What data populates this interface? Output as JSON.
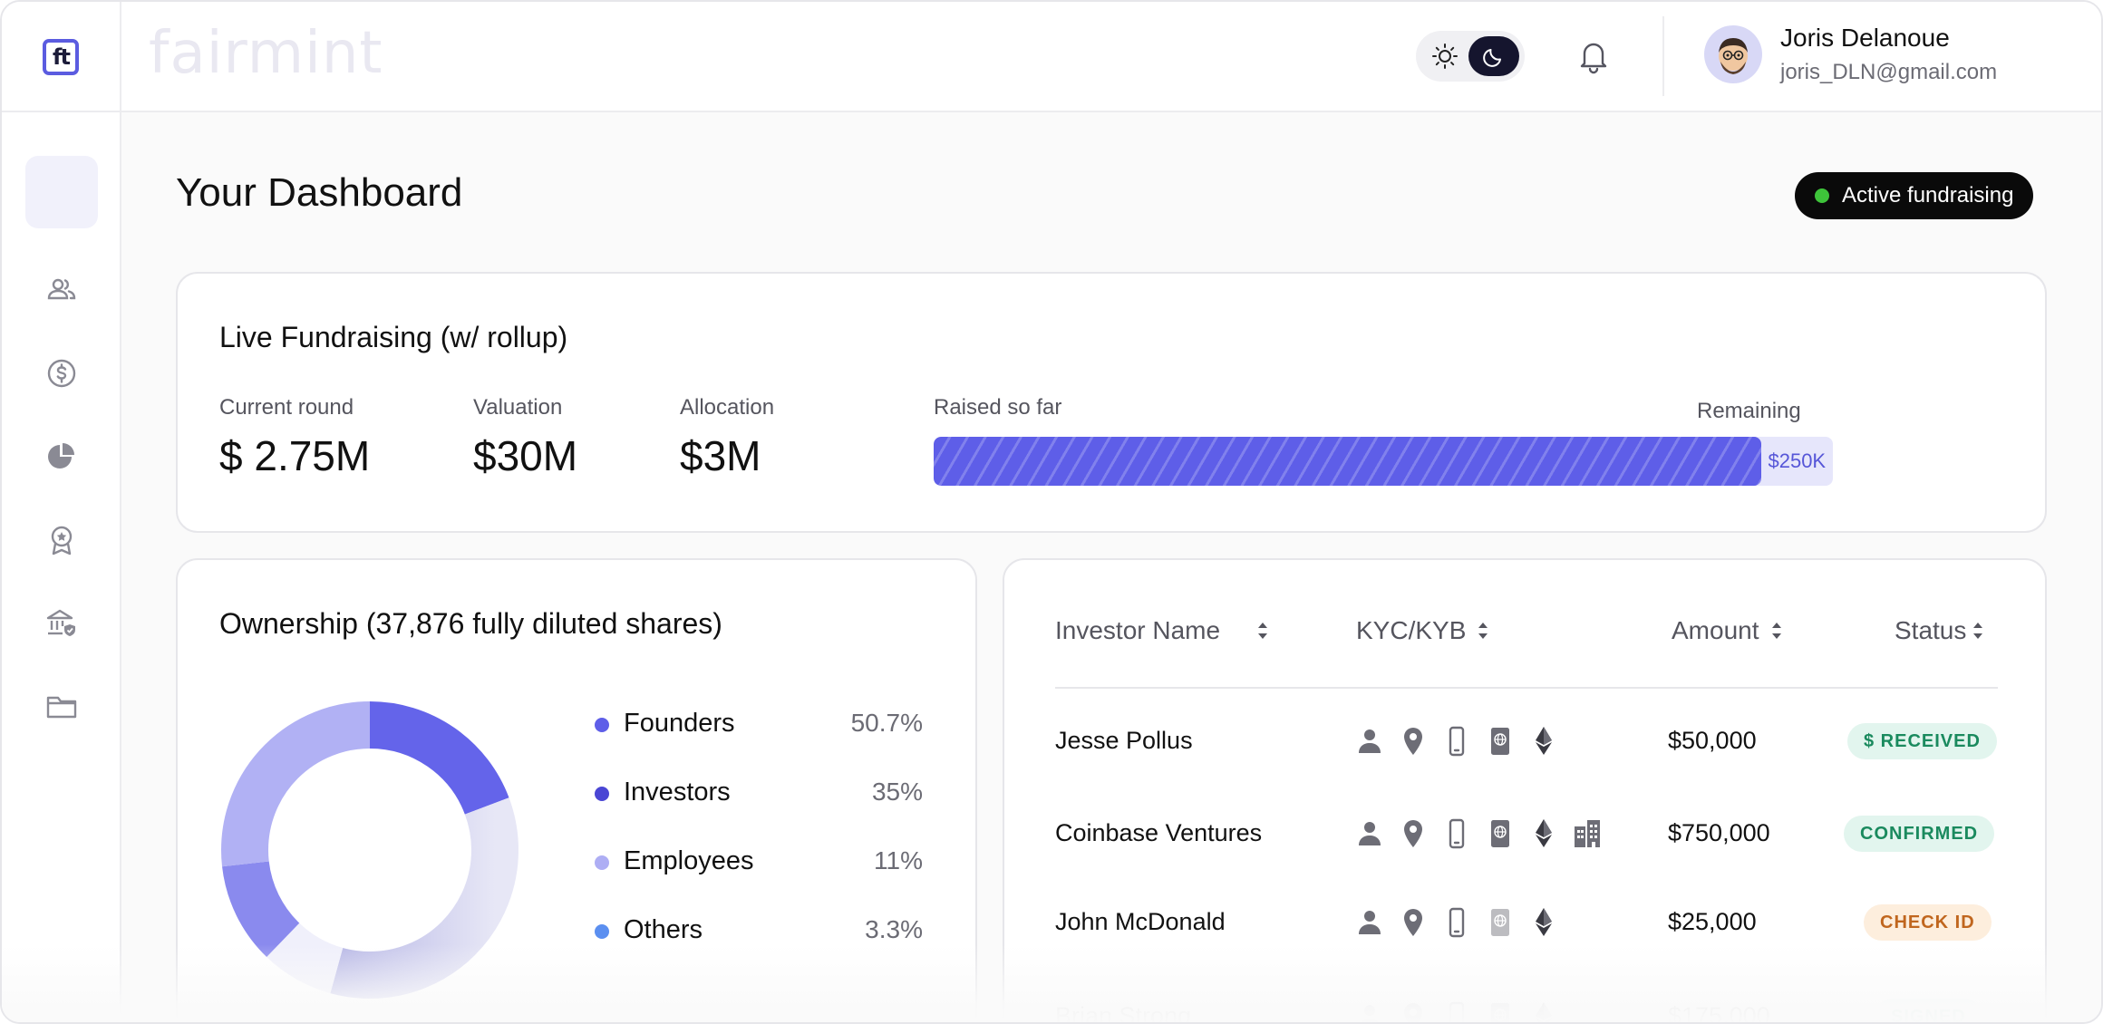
{
  "brand": {
    "logo_text": "ft",
    "wordmark": "fairmint"
  },
  "user": {
    "name": "Joris Delanoue",
    "email": "joris_DLN@gmail.com"
  },
  "page": {
    "title": "Your Dashboard",
    "status_badge": "Active fundraising"
  },
  "colors": {
    "accent": "#5e5ee8",
    "active_dot": "#3ec43a",
    "badge_bg": "#0a0a0a"
  },
  "sidebar": {
    "items": [
      {
        "name": "dashboard-icon"
      },
      {
        "name": "people-icon"
      },
      {
        "name": "dollar-icon"
      },
      {
        "name": "pie-chart-icon"
      },
      {
        "name": "award-icon"
      },
      {
        "name": "bank-shield-icon"
      },
      {
        "name": "folder-icon"
      }
    ]
  },
  "live": {
    "title": "Live Fundraising (w/ rollup)",
    "current_round_label": "Current round",
    "current_round_value": "$ 2.75M",
    "valuation_label": "Valuation",
    "valuation_value": "$30M",
    "allocation_label": "Allocation",
    "allocation_value": "$3M",
    "raised_label": "Raised so far",
    "remaining_label": "Remaining",
    "remaining_value": "$250K (8%)",
    "raised_percent": 92
  },
  "ownership": {
    "title": "Ownership (37,876 fully diluted shares)",
    "legend": [
      {
        "name": "Founders",
        "value": "50.7%",
        "color": "#5e5ee8"
      },
      {
        "name": "Investors",
        "value": "35%",
        "color": "#4a46d4"
      },
      {
        "name": "Employees",
        "value": "11%",
        "color": "#aeaef4"
      },
      {
        "name": "Others",
        "value": "3.3%",
        "color": "#5b8ff0"
      }
    ]
  },
  "chart_data": {
    "type": "pie",
    "title": "Ownership (37,876 fully diluted shares)",
    "categories": [
      "Founders",
      "Investors",
      "Employees",
      "Others"
    ],
    "values": [
      50.7,
      35,
      11,
      3.3
    ],
    "legend": "right",
    "style": "donut"
  },
  "investors": {
    "headers": {
      "name": "Investor Name",
      "kyc": "KYC/KYB",
      "amount": "Amount",
      "status": "Status"
    },
    "rows": [
      {
        "name": "Jesse Pollus",
        "amount": "$50,000",
        "status": "$ RECEIVED",
        "kyc": [
          "person-icon",
          "location-pin-icon",
          "phone-icon",
          "passport-icon",
          "ethereum-icon"
        ]
      },
      {
        "name": "Coinbase Ventures",
        "amount": "$750,000",
        "status": "CONFIRMED",
        "kyc": [
          "person-icon",
          "location-pin-icon",
          "phone-icon",
          "passport-icon",
          "ethereum-icon",
          "building-icon"
        ]
      },
      {
        "name": "John McDonald",
        "amount": "$25,000",
        "status": "CHECK ID",
        "kyc": [
          "person-icon",
          "location-pin-icon",
          "phone-icon",
          "passport-icon",
          "ethereum-icon"
        ]
      },
      {
        "name": "Brian Strong",
        "amount": "$175,000",
        "status": "SIGNED",
        "kyc": [
          "person-icon",
          "location-pin-icon",
          "phone-icon",
          "passport-icon",
          "ethereum-icon"
        ]
      }
    ]
  }
}
